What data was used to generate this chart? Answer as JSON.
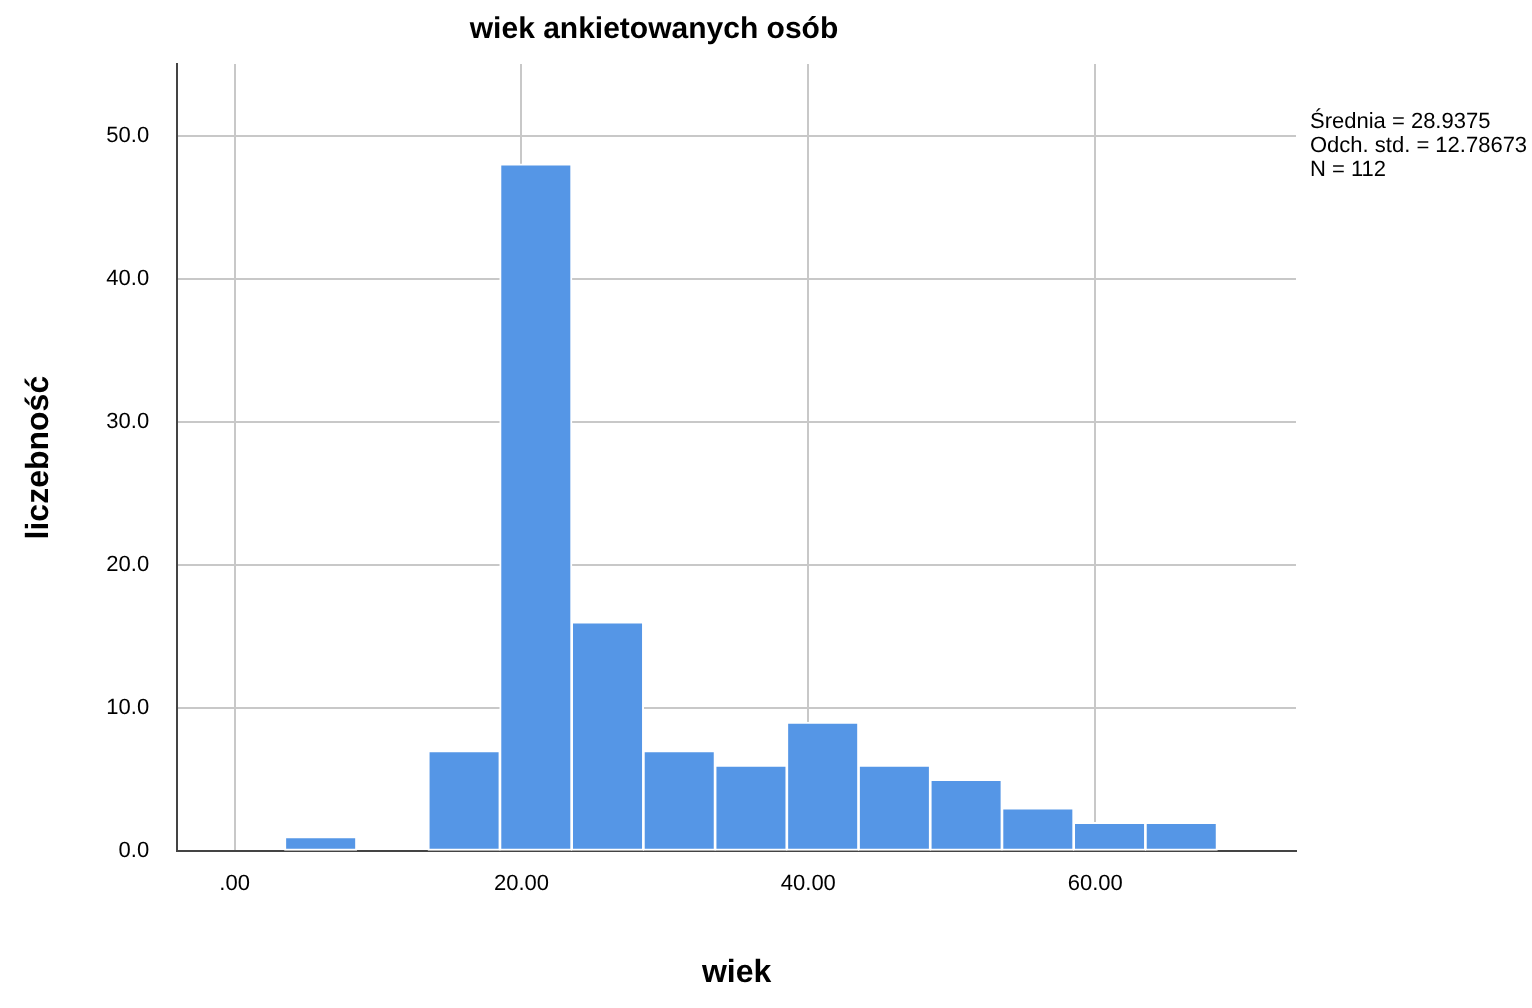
{
  "chart_data": {
    "type": "histogram",
    "title": "wiek ankietowanych osób",
    "xlabel": "wiek",
    "ylabel": "liczebność",
    "bins": [
      3.5,
      8.5,
      13.5,
      18.5,
      23.5,
      28.5,
      33.5,
      38.5,
      43.5,
      48.5,
      53.5,
      58.5,
      63.5,
      68.5
    ],
    "values": [
      1,
      0,
      7,
      48,
      16,
      7,
      6,
      9,
      6,
      5,
      3,
      2,
      2
    ],
    "color": "#5596e6",
    "xlim": [
      -4,
      74
    ],
    "xticks": [
      {
        "value": 0,
        "label": ".00"
      },
      {
        "value": 20,
        "label": "20.00"
      },
      {
        "value": 40,
        "label": "40.00"
      },
      {
        "value": 60,
        "label": "60.00"
      }
    ],
    "ylim": [
      0,
      55
    ],
    "yticks": [
      {
        "value": 0,
        "label": "0.0"
      },
      {
        "value": 10,
        "label": "10.0"
      },
      {
        "value": 20,
        "label": "20.0"
      },
      {
        "value": 30,
        "label": "30.0"
      },
      {
        "value": 40,
        "label": "40.0"
      },
      {
        "value": 50,
        "label": "50.0"
      }
    ],
    "grid": true,
    "legend": false,
    "annotations": [
      "Średnia = 28.9375",
      "Odch. std. = 12.78673",
      "N = 112"
    ]
  }
}
